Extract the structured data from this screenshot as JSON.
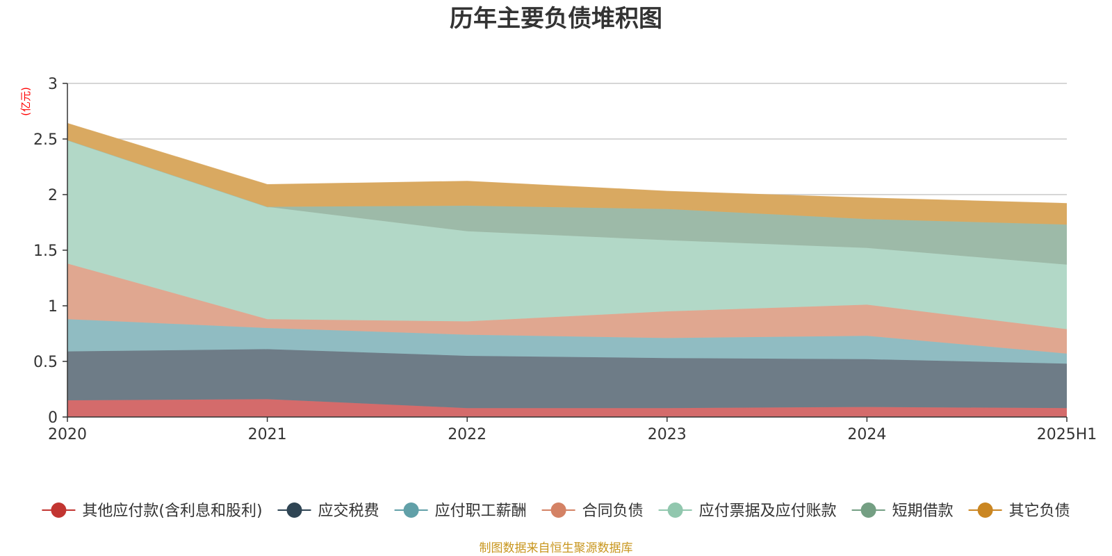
{
  "chart_data": {
    "type": "area",
    "stacked": true,
    "title": "历年主要负债堆积图",
    "unit_label": "(亿元)",
    "x": [
      "2020",
      "2021",
      "2022",
      "2023",
      "2024",
      "2025H1"
    ],
    "ylim": [
      0,
      3
    ],
    "yticks": [
      "0",
      "0.5",
      "1",
      "1.5",
      "2",
      "2.5",
      "3"
    ],
    "ytick_values": [
      0,
      0.5,
      1,
      1.5,
      2,
      2.5,
      3
    ],
    "grid": true,
    "legend_position": "bottom",
    "source": "制图数据来自恒生聚源数据库",
    "series": [
      {
        "name": "其他应付款(含利息和股利)",
        "values": [
          0.15,
          0.16,
          0.08,
          0.08,
          0.09,
          0.08
        ],
        "color": "#c23531",
        "area_color": "#d46b6b"
      },
      {
        "name": "应交税费",
        "values": [
          0.44,
          0.45,
          0.47,
          0.45,
          0.43,
          0.4
        ],
        "color": "#2f4554",
        "area_color": "#6e7c87"
      },
      {
        "name": "应付职工薪酬",
        "values": [
          0.29,
          0.19,
          0.19,
          0.18,
          0.21,
          0.09
        ],
        "color": "#61a0a8",
        "area_color": "#90bcc2"
      },
      {
        "name": "合同负债",
        "values": [
          0.5,
          0.08,
          0.12,
          0.24,
          0.28,
          0.22
        ],
        "color": "#d48265",
        "area_color": "#e0a790"
      },
      {
        "name": "应付票据及应付账款",
        "values": [
          1.11,
          1.01,
          0.81,
          0.64,
          0.51,
          0.58
        ],
        "color": "#91c7ae",
        "area_color": "#b2d8c7"
      },
      {
        "name": "短期借款",
        "values": [
          0.0,
          0.0,
          0.23,
          0.28,
          0.26,
          0.36
        ],
        "color": "#749f83",
        "area_color": "#9dbaa8"
      },
      {
        "name": "其它负债",
        "values": [
          0.15,
          0.2,
          0.22,
          0.16,
          0.19,
          0.19
        ],
        "color": "#ca8622",
        "area_color": "#d9a961"
      }
    ]
  }
}
